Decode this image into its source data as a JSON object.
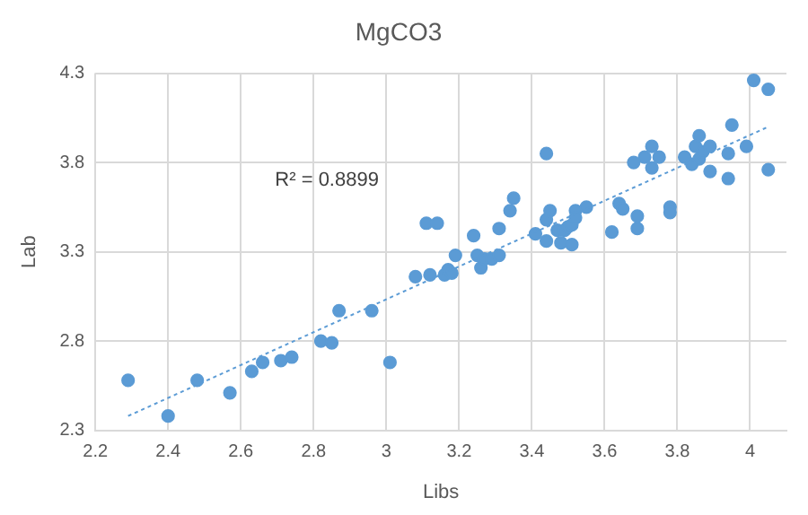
{
  "chart_data": {
    "type": "scatter",
    "title": "MgCO3",
    "xlabel": "Libs",
    "ylabel": "Lab",
    "xlim": [
      2.2,
      4.1
    ],
    "xticks": [
      {
        "value": 2.2,
        "label": "2.2"
      },
      {
        "value": 2.4,
        "label": "2.4"
      },
      {
        "value": 2.6,
        "label": "2.6"
      },
      {
        "value": 2.8,
        "label": "2.8"
      },
      {
        "value": 3.0,
        "label": "3"
      },
      {
        "value": 3.2,
        "label": "3.2"
      },
      {
        "value": 3.4,
        "label": "3.4"
      },
      {
        "value": 3.6,
        "label": "3.6"
      },
      {
        "value": 3.8,
        "label": "3.8"
      },
      {
        "value": 4.0,
        "label": "4"
      }
    ],
    "ylim": [
      2.3,
      4.3
    ],
    "yticks": [
      2.3,
      2.8,
      3.3,
      3.8,
      4.3
    ],
    "grid": true,
    "marker": "circle",
    "annotations": [
      "R² = 0.8899"
    ],
    "series": [
      {
        "color": "#5b9bd5",
        "x": [
          2.29,
          2.4,
          2.48,
          2.57,
          2.63,
          2.66,
          2.71,
          2.74,
          2.82,
          2.85,
          2.87,
          2.96,
          3.01,
          3.08,
          3.11,
          3.12,
          3.14,
          3.16,
          3.17,
          3.18,
          3.19,
          3.24,
          3.25,
          3.26,
          3.27,
          3.29,
          3.31,
          3.31,
          3.34,
          3.35,
          3.41,
          3.44,
          3.44,
          3.44,
          3.45,
          3.47,
          3.48,
          3.49,
          3.5,
          3.51,
          3.51,
          3.52,
          3.52,
          3.55,
          3.62,
          3.64,
          3.65,
          3.68,
          3.69,
          3.69,
          3.71,
          3.73,
          3.73,
          3.75,
          3.78,
          3.78,
          3.82,
          3.84,
          3.85,
          3.86,
          3.86,
          3.87,
          3.89,
          3.89,
          3.94,
          3.94,
          3.95,
          3.99,
          4.01,
          4.05,
          4.05
        ],
        "values": [
          2.58,
          2.38,
          2.58,
          2.51,
          2.63,
          2.68,
          2.69,
          2.71,
          2.8,
          2.79,
          2.97,
          2.97,
          2.68,
          3.16,
          3.46,
          3.17,
          3.46,
          3.17,
          3.2,
          3.18,
          3.28,
          3.39,
          3.28,
          3.21,
          3.26,
          3.26,
          3.43,
          3.28,
          3.53,
          3.6,
          3.4,
          3.85,
          3.36,
          3.48,
          3.53,
          3.42,
          3.35,
          3.42,
          3.44,
          3.45,
          3.34,
          3.53,
          3.49,
          3.55,
          3.41,
          3.57,
          3.54,
          3.8,
          3.5,
          3.43,
          3.83,
          3.77,
          3.89,
          3.83,
          3.55,
          3.52,
          3.83,
          3.79,
          3.89,
          3.95,
          3.82,
          3.86,
          3.89,
          3.75,
          3.71,
          3.85,
          4.01,
          3.89,
          4.26,
          3.76,
          4.21
        ]
      },
      {
        "type": "line",
        "color": "#5b9bd5",
        "x": [
          2.29,
          4.05
        ],
        "values": [
          2.38,
          4.0
        ],
        "line_style": "dotted",
        "marker": "none"
      }
    ]
  }
}
